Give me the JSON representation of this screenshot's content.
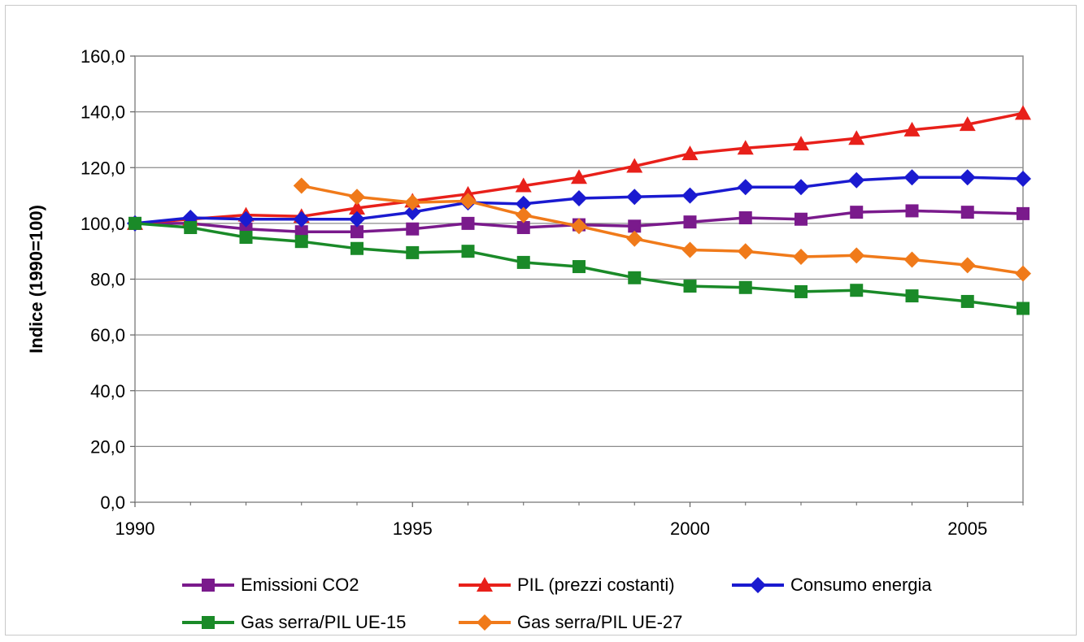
{
  "chart_data": {
    "type": "line",
    "title": "",
    "xlabel": "",
    "ylabel": "Indice (1990=100)",
    "xlim": [
      1990,
      2006
    ],
    "ylim": [
      0,
      160
    ],
    "x_ticks": [
      1990,
      1995,
      2000,
      2005
    ],
    "x_tick_labels": [
      "1990",
      "1995",
      "2000",
      "2005"
    ],
    "y_ticks": [
      0,
      20,
      40,
      60,
      80,
      100,
      120,
      140,
      160
    ],
    "y_tick_labels": [
      "0,0",
      "20,0",
      "40,0",
      "60,0",
      "80,0",
      "100,0",
      "120,0",
      "140,0",
      "160,0"
    ],
    "grid": "horizontal",
    "legend": "bottom",
    "series": [
      {
        "name": "Emissioni CO2",
        "color": "#7a1a8c",
        "marker": "square",
        "x": [
          1990,
          1991,
          1992,
          1993,
          1994,
          1995,
          1996,
          1997,
          1998,
          1999,
          2000,
          2001,
          2002,
          2003,
          2004,
          2005,
          2006
        ],
        "values": [
          100.0,
          100.0,
          98.0,
          97.0,
          97.0,
          98.0,
          100.0,
          98.5,
          99.5,
          99.0,
          100.5,
          102.0,
          101.5,
          104.0,
          104.5,
          104.0,
          103.5
        ]
      },
      {
        "name": "PIL (prezzi costanti)",
        "color": "#e8201a",
        "marker": "triangle",
        "x": [
          1990,
          1991,
          1992,
          1993,
          1994,
          1995,
          1996,
          1997,
          1998,
          1999,
          2000,
          2001,
          2002,
          2003,
          2004,
          2005,
          2006
        ],
        "values": [
          100.0,
          101.5,
          103.0,
          102.5,
          105.5,
          108.0,
          110.5,
          113.5,
          116.5,
          120.5,
          125.0,
          127.0,
          128.5,
          130.5,
          133.5,
          135.5,
          139.5
        ]
      },
      {
        "name": "Consumo energia",
        "color": "#1a1ad0",
        "marker": "diamond",
        "x": [
          1990,
          1991,
          1992,
          1993,
          1994,
          1995,
          1996,
          1997,
          1998,
          1999,
          2000,
          2001,
          2002,
          2003,
          2004,
          2005,
          2006
        ],
        "values": [
          100.0,
          102.0,
          101.5,
          101.5,
          101.5,
          104.0,
          107.5,
          107.0,
          109.0,
          109.5,
          110.0,
          113.0,
          113.0,
          115.5,
          116.5,
          116.5,
          116.0
        ]
      },
      {
        "name": "Gas serra/PIL UE-15",
        "color": "#1a8a28",
        "marker": "square",
        "x": [
          1990,
          1991,
          1992,
          1993,
          1994,
          1995,
          1996,
          1997,
          1998,
          1999,
          2000,
          2001,
          2002,
          2003,
          2004,
          2005,
          2006
        ],
        "values": [
          100.0,
          98.5,
          95.0,
          93.5,
          91.0,
          89.5,
          90.0,
          86.0,
          84.5,
          80.5,
          77.5,
          77.0,
          75.5,
          76.0,
          74.0,
          72.0,
          69.5
        ]
      },
      {
        "name": "Gas serra/PIL UE-27",
        "color": "#f07a1a",
        "marker": "diamond",
        "x": [
          1993,
          1994,
          1995,
          1996,
          1997,
          1998,
          1999,
          2000,
          2001,
          2002,
          2003,
          2004,
          2005,
          2006
        ],
        "values": [
          113.5,
          109.5,
          107.5,
          108.0,
          103.0,
          99.0,
          94.5,
          90.5,
          90.0,
          88.0,
          88.5,
          87.0,
          85.0,
          82.0
        ]
      }
    ]
  }
}
